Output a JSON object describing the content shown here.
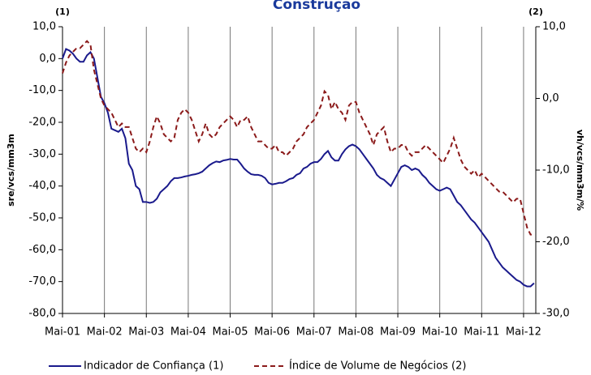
{
  "chart_data": {
    "type": "line",
    "title": "Construção",
    "y_label": "sre/vcs/mm3m",
    "y2_label": "vh/vcs/mm3m/%",
    "y_axis_note": "(1)",
    "y2_axis_note": "(2)",
    "grid": "x",
    "categories": [
      "Mai-01",
      null,
      null,
      null,
      null,
      null,
      null,
      null,
      null,
      null,
      null,
      null,
      "Mai-02",
      null,
      null,
      null,
      null,
      null,
      null,
      null,
      null,
      null,
      null,
      null,
      "Mai-03",
      null,
      null,
      null,
      null,
      null,
      null,
      null,
      null,
      null,
      null,
      null,
      "Mai-04",
      null,
      null,
      null,
      null,
      null,
      null,
      null,
      null,
      null,
      null,
      null,
      "Mai-05",
      null,
      null,
      null,
      null,
      null,
      null,
      null,
      null,
      null,
      null,
      null,
      "Mai-06",
      null,
      null,
      null,
      null,
      null,
      null,
      null,
      null,
      null,
      null,
      null,
      "Mai-07",
      null,
      null,
      null,
      null,
      null,
      null,
      null,
      null,
      null,
      null,
      null,
      "Mai-08",
      null,
      null,
      null,
      null,
      null,
      null,
      null,
      null,
      null,
      null,
      null,
      "Mai-09",
      null,
      null,
      null,
      null,
      null,
      null,
      null,
      null,
      null,
      null,
      null,
      "Mai-10",
      null,
      null,
      null,
      null,
      null,
      null,
      null,
      null,
      null,
      null,
      null,
      "Mai-11",
      null,
      null,
      null,
      null,
      null,
      null,
      null,
      null,
      null,
      null,
      null,
      "Mai-12",
      null,
      null,
      null
    ],
    "ylim": [
      -80,
      10
    ],
    "yticks": [
      {
        "value": 10,
        "label": "10,0"
      },
      {
        "value": 0,
        "label": "0,0"
      },
      {
        "value": -10,
        "label": "-10,0"
      },
      {
        "value": -20,
        "label": "-20,0"
      },
      {
        "value": -30,
        "label": "-30,0"
      },
      {
        "value": -40,
        "label": "-40,0"
      },
      {
        "value": -50,
        "label": "-50,0"
      },
      {
        "value": -60,
        "label": "-60,0"
      },
      {
        "value": -70,
        "label": "-70,0"
      },
      {
        "value": -80,
        "label": "-80,0"
      }
    ],
    "y2lim": [
      -30,
      10
    ],
    "y2ticks": [
      {
        "value": 10,
        "label": "10,0"
      },
      {
        "value": 0,
        "label": "0,0"
      },
      {
        "value": -10,
        "label": "-10,0"
      },
      {
        "value": -20,
        "label": "-20,0"
      },
      {
        "value": -30,
        "label": "-30,0"
      }
    ],
    "series": [
      {
        "name": "Indicador de Confiança (1)",
        "color": "#1a1a8c",
        "dash": "solid",
        "values": [
          0,
          3,
          2.5,
          1.5,
          0,
          -1,
          -1,
          1,
          2,
          0,
          -6,
          -12,
          -14,
          -17,
          -22,
          -22.5,
          -23,
          -22,
          -25,
          -33,
          -35,
          -40,
          -41,
          -45,
          -45,
          -45.3,
          -45,
          -44,
          -42,
          -41,
          -40,
          -38.5,
          -37.5,
          -37.5,
          -37.3,
          -37,
          -36.8,
          -36.5,
          -36.3,
          -36,
          -35.5,
          -34.5,
          -33.5,
          -32.8,
          -32.3,
          -32.5,
          -32,
          -31.8,
          -31.5,
          -31.7,
          -31.7,
          -33,
          -34.5,
          -35.5,
          -36.3,
          -36.5,
          -36.5,
          -36.8,
          -37.5,
          -39,
          -39.5,
          -39.3,
          -39,
          -39,
          -38.5,
          -37.8,
          -37.5,
          -36.5,
          -36,
          -34.5,
          -34,
          -33,
          -32.5,
          -32.5,
          -31.5,
          -30,
          -29,
          -31,
          -32,
          -32,
          -30,
          -28.5,
          -27.5,
          -27,
          -27.5,
          -28.5,
          -30,
          -31.5,
          -33,
          -34.5,
          -36.5,
          -37.5,
          -38,
          -39,
          -40,
          -38,
          -36,
          -34,
          -33.5,
          -34,
          -35,
          -34.5,
          -35,
          -36.5,
          -37.5,
          -39,
          -40,
          -41,
          -41.5,
          -41,
          -40.5,
          -41,
          -43,
          -45,
          -46,
          -47.5,
          -49,
          -50.5,
          -51.5,
          -53,
          -54.5,
          -56,
          -57.5,
          -60,
          -62.5,
          -64,
          -65.5,
          -66.5,
          -67.5,
          -68.5,
          -69.5,
          -70,
          -71,
          -71.5,
          -71.5,
          -70.5
        ]
      },
      {
        "name": "Índice de Volume de Negócios (2)",
        "color": "#8b1a1a",
        "dash": "dashed",
        "axis": "y2",
        "values": [
          3.5,
          5,
          6,
          6.5,
          7,
          7,
          7.5,
          8,
          7.5,
          4,
          2,
          0,
          -1,
          -1.5,
          -2,
          -3,
          -4,
          -3.5,
          -4,
          -4,
          -5.5,
          -7,
          -7.5,
          -7,
          -7.5,
          -6,
          -4,
          -2.5,
          -3.5,
          -5,
          -5.5,
          -6,
          -5.5,
          -3,
          -2,
          -1.5,
          -2,
          -3,
          -4.5,
          -6,
          -5,
          -3.5,
          -5,
          -5.5,
          -5,
          -4,
          -3.5,
          -3,
          -2.5,
          -3,
          -4,
          -3,
          -3,
          -2.5,
          -4,
          -5,
          -6,
          -6,
          -6.5,
          -7,
          -7,
          -6.5,
          -7.5,
          -7.5,
          -8,
          -7.5,
          -7,
          -6,
          -5.5,
          -5,
          -4,
          -3.5,
          -3,
          -2,
          -1,
          1,
          0.5,
          -1.5,
          -0.5,
          -1.5,
          -2,
          -3,
          -1,
          -0.5,
          -0.5,
          -2,
          -3,
          -4,
          -5,
          -6.5,
          -5,
          -4.5,
          -4,
          -6,
          -7.5,
          -7,
          -7,
          -6.5,
          -6.5,
          -7.5,
          -8,
          -7.5,
          -7.5,
          -7,
          -6.5,
          -7,
          -7.5,
          -8,
          -8.5,
          -9,
          -8,
          -7,
          -5.5,
          -7,
          -8.5,
          -9.5,
          -10,
          -10.5,
          -10,
          -11,
          -10.5,
          -11,
          -11.5,
          -12,
          -12.5,
          -13,
          -13,
          -13.5,
          -14,
          -14.5,
          -14,
          -14,
          -16,
          -18,
          -19,
          -19
        ]
      }
    ]
  }
}
